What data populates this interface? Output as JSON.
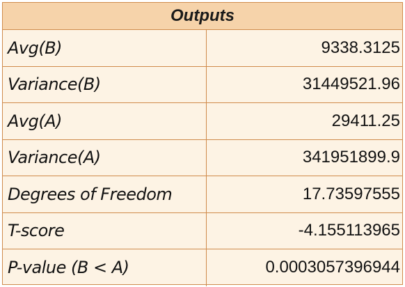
{
  "table": {
    "title": "Outputs",
    "rows": [
      {
        "label": "Avg(B)",
        "value": "9338.3125"
      },
      {
        "label": "Variance(B)",
        "value": "31449521.96"
      },
      {
        "label": "Avg(A)",
        "value": "29411.25"
      },
      {
        "label": "Variance(A)",
        "value": "341951899.9"
      },
      {
        "label": "Degrees of Freedom",
        "value": "17.73597555"
      },
      {
        "label": "T-score",
        "value": "-4.155113965"
      },
      {
        "label": "P-value (B < A)",
        "value": "0.0003057396944"
      }
    ]
  },
  "colors": {
    "header_fill": "#f6d3aa",
    "cell_fill": "#fdf3e4",
    "border": "#cf8a4a"
  }
}
